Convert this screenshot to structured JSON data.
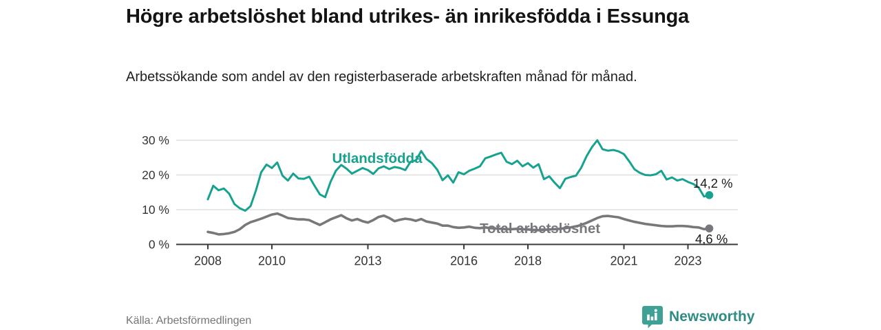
{
  "header": {
    "title": "Högre arbetslöshet bland utrikes- än inrikesfödda i Essunga",
    "subtitle": "Arbetssökande som andel av den registerbaserade arbetskraften månad för månad."
  },
  "footer": {
    "source": "Källa: Arbetsförmedlingen",
    "brand_name": "Newsworthy",
    "brand_icon": "bar-chart-speech-bubble-icon"
  },
  "colors": {
    "accent_teal": "#17A28F",
    "series_gray": "#77787B",
    "axis_dark": "#3A3A3C",
    "grid_light": "#DBDBDB",
    "tick_text": "#333333",
    "value_text": "#1A1A1A",
    "muted_text": "#757575",
    "brand_teal": "#2E8C85",
    "brand_badge": "#3FA096"
  },
  "chart_data": {
    "type": "line",
    "title": "Högre arbetslöshet bland utrikes- än inrikesfödda i Essunga",
    "subtitle": "Arbetssökande som andel av den registerbaserade arbetskraften månad för månad.",
    "unit": "%",
    "x_start_year": 2008,
    "points_per_year": 6,
    "x_tick_years": [
      2008,
      2010,
      2013,
      2016,
      2018,
      2021,
      2023
    ],
    "y_ticks": [
      {
        "value": 0,
        "label": "0 %"
      },
      {
        "value": 10,
        "label": "10 %"
      },
      {
        "value": 20,
        "label": "20 %"
      },
      {
        "value": 30,
        "label": "30 %"
      }
    ],
    "ylim": [
      0,
      32
    ],
    "grid": "horizontal",
    "legend_position": "inline-labels",
    "series": [
      {
        "name": "Utlandsfödda",
        "color": "#17A28F",
        "end_value": 14.2,
        "end_label": "14,2 %",
        "values": [
          13.0,
          16.9,
          15.6,
          16.1,
          14.6,
          11.6,
          10.4,
          9.7,
          11.0,
          15.5,
          20.8,
          23.0,
          22.0,
          23.6,
          19.8,
          18.4,
          20.4,
          19.0,
          18.9,
          19.5,
          16.9,
          14.4,
          13.6,
          18.0,
          21.2,
          22.9,
          21.8,
          20.4,
          21.2,
          22.0,
          21.4,
          20.3,
          21.9,
          22.5,
          21.7,
          22.3,
          22.0,
          21.4,
          23.8,
          24.2,
          26.9,
          24.6,
          23.4,
          21.5,
          18.5,
          19.9,
          17.8,
          20.8,
          20.2,
          21.2,
          21.8,
          22.5,
          24.8,
          25.3,
          25.9,
          26.4,
          23.8,
          23.1,
          24.1,
          22.5,
          23.4,
          22.1,
          23.1,
          18.8,
          19.6,
          17.8,
          16.2,
          18.9,
          19.4,
          19.8,
          22.1,
          25.4,
          28.0,
          30.0,
          27.4,
          27.0,
          27.2,
          26.8,
          26.0,
          23.9,
          21.6,
          20.6,
          20.0,
          19.9,
          20.2,
          21.2,
          18.7,
          19.3,
          18.4,
          18.8,
          18.0,
          17.4,
          16.4,
          13.8,
          14.2
        ]
      },
      {
        "name": "Total arbetslöshet",
        "color": "#77787B",
        "end_value": 4.6,
        "end_label": "4,6 %",
        "values": [
          3.6,
          3.3,
          2.9,
          3.0,
          3.2,
          3.6,
          4.4,
          5.6,
          6.4,
          6.9,
          7.4,
          8.0,
          8.6,
          8.9,
          8.3,
          7.6,
          7.4,
          7.2,
          7.2,
          7.0,
          6.3,
          5.6,
          6.4,
          7.2,
          7.8,
          8.4,
          7.5,
          6.9,
          7.3,
          6.7,
          6.3,
          7.0,
          7.9,
          8.3,
          7.6,
          6.7,
          7.1,
          7.4,
          7.2,
          6.8,
          7.3,
          6.6,
          6.3,
          6.0,
          5.4,
          5.4,
          5.0,
          4.8,
          4.9,
          5.1,
          4.8,
          4.7,
          4.9,
          4.7,
          4.6,
          4.5,
          4.4,
          4.4,
          4.5,
          4.4,
          4.3,
          4.2,
          4.1,
          4.2,
          4.3,
          4.4,
          4.5,
          4.7,
          4.9,
          5.2,
          5.6,
          6.2,
          6.9,
          7.6,
          8.1,
          8.2,
          8.0,
          7.8,
          7.3,
          6.9,
          6.5,
          6.2,
          5.9,
          5.7,
          5.5,
          5.3,
          5.2,
          5.2,
          5.3,
          5.3,
          5.2,
          5.0,
          4.9,
          4.4,
          4.6
        ]
      }
    ]
  }
}
